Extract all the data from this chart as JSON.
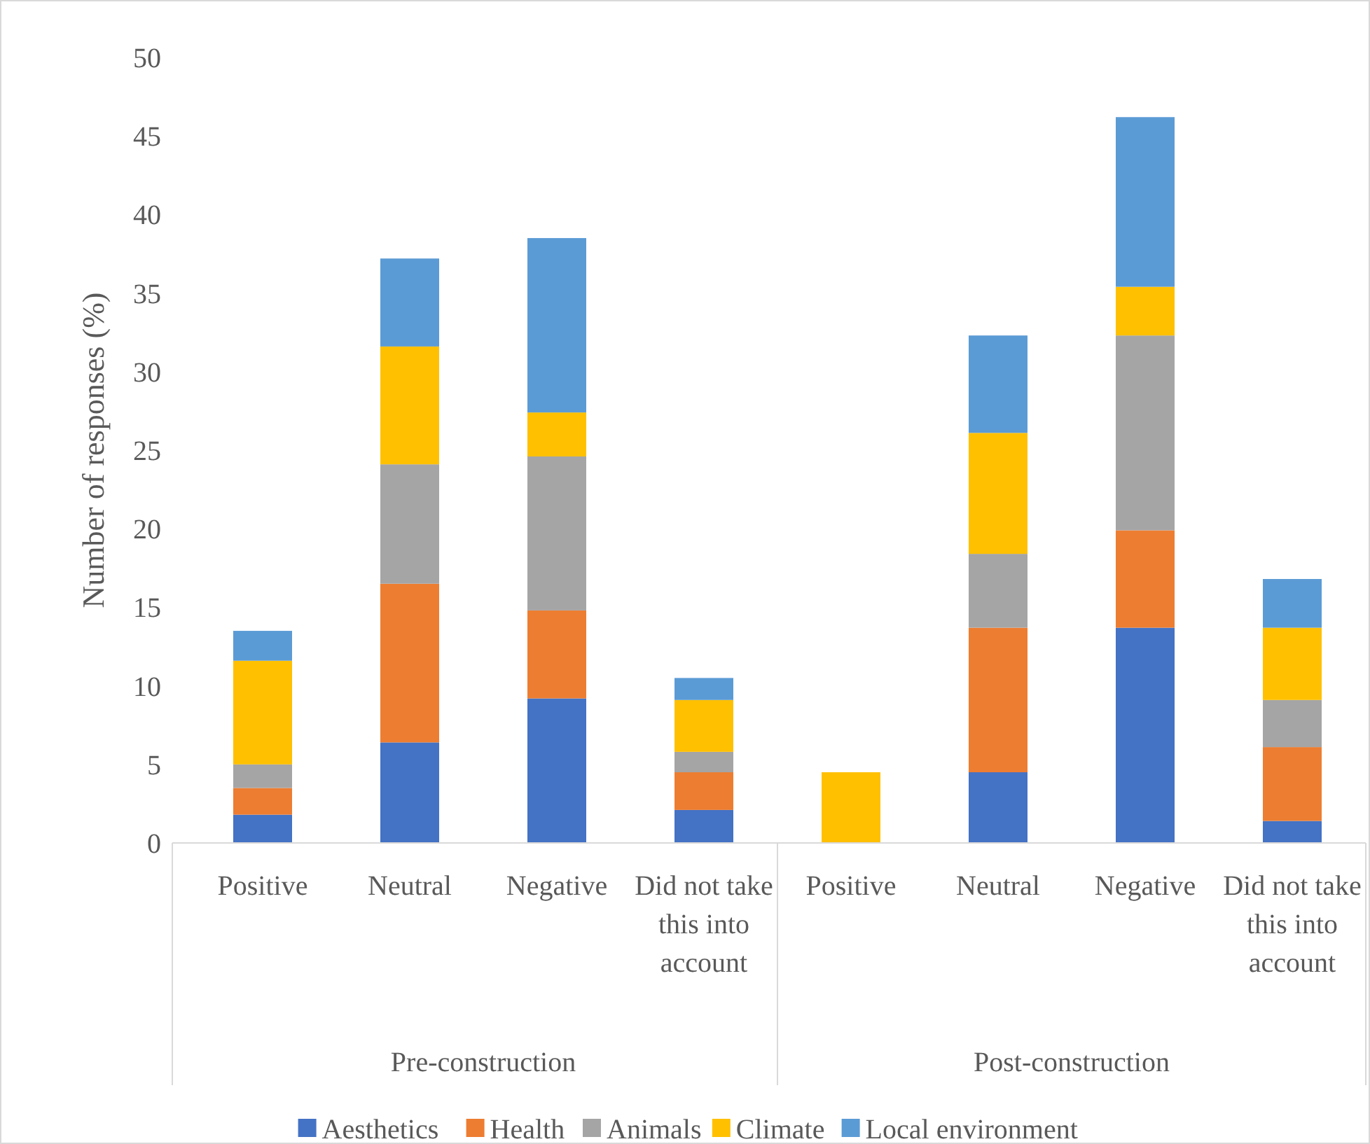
{
  "chart_data": {
    "type": "bar",
    "stacked": true,
    "ylabel": "Number of responses (%)",
    "categories": [
      "Positive",
      "Neutral",
      "Negative",
      "Did not take this into account",
      "Positive",
      "Neutral",
      "Negative",
      "Did not take this into account"
    ],
    "series": [
      {
        "name": "Aesthetics",
        "color": "#4472c4",
        "values": [
          1.8,
          6.4,
          9.2,
          2.1,
          0,
          4.5,
          13.7,
          1.4
        ]
      },
      {
        "name": "Health",
        "color": "#ed7d31",
        "values": [
          1.7,
          10.1,
          5.6,
          2.4,
          0,
          9.2,
          6.2,
          4.7
        ]
      },
      {
        "name": "Animals",
        "color": "#a5a5a5",
        "values": [
          1.5,
          7.6,
          9.8,
          1.3,
          0,
          4.7,
          12.4,
          3.0
        ]
      },
      {
        "name": "Climate",
        "color": "#ffc000",
        "values": [
          6.6,
          7.5,
          2.8,
          3.3,
          4.5,
          7.7,
          3.1,
          4.6
        ]
      },
      {
        "name": "Local environment",
        "color": "#5b9bd5",
        "values": [
          1.9,
          5.6,
          11.1,
          1.4,
          0,
          6.2,
          10.8,
          3.1
        ]
      }
    ],
    "ylim": [
      0,
      50
    ],
    "yticks": [
      0,
      5,
      10,
      15,
      20,
      25,
      30,
      35,
      40,
      45,
      50
    ],
    "grid": false,
    "legend": "bottom",
    "annotations": [
      "Pre-construction",
      "Post-construction"
    ]
  }
}
